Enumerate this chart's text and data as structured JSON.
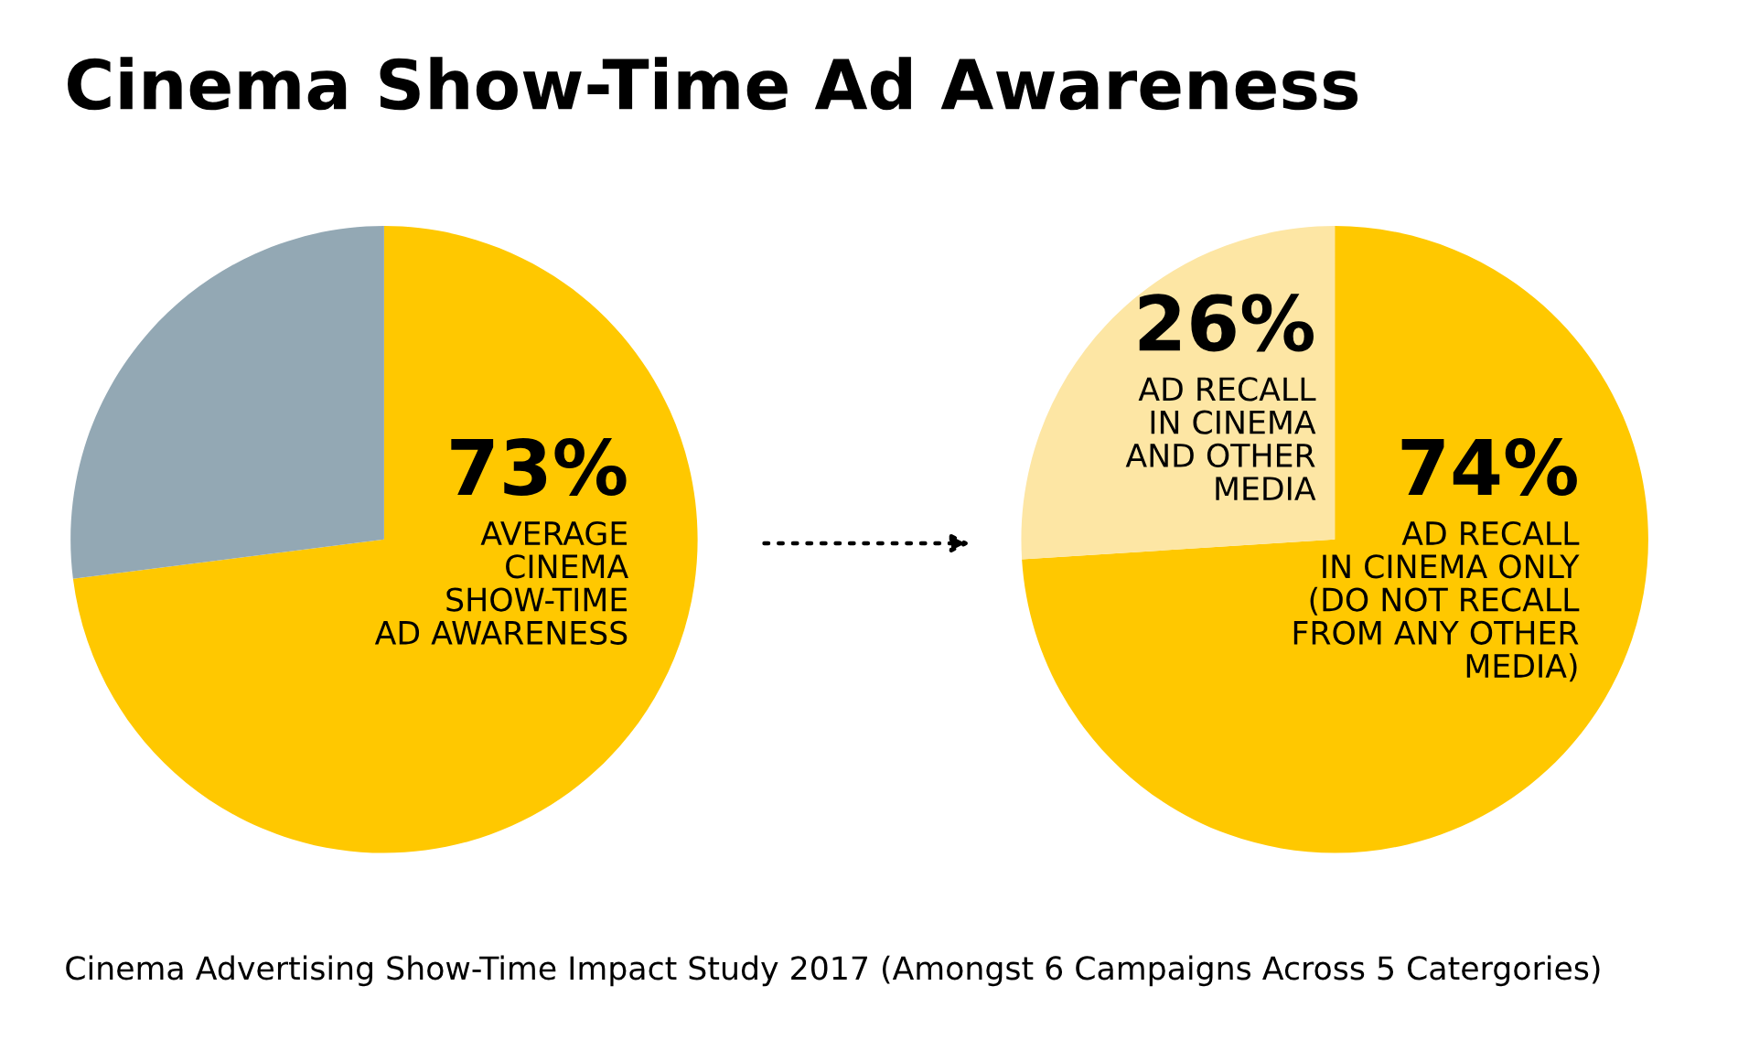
{
  "chart_data": [
    {
      "type": "pie",
      "title": "Cinema Show-Time Ad Awareness",
      "categories": [
        "AVERAGE\nCINEMA\nSHOW-TIME\nAD AWARENESS",
        null
      ],
      "values": [
        73,
        27
      ],
      "colors": [
        "#ffc800",
        "#93a8b4"
      ],
      "value_labels": [
        "73%",
        null
      ],
      "annotations": [
        "Cinema Advertising Show-Time Impact Study 2017 (Amongst 6 Campaigns Across 5 Catergories)"
      ]
    },
    {
      "type": "pie",
      "categories": [
        "AD RECALL\nIN CINEMA ONLY\n(DO NOT RECALL\nFROM ANY OTHER\nMEDIA)",
        "AD RECALL\nIN CINEMA\nAND OTHER\nMEDIA"
      ],
      "values": [
        74,
        26
      ],
      "colors": [
        "#ffc800",
        "#fde6a4"
      ],
      "value_labels": [
        "74%",
        "26%"
      ]
    }
  ]
}
